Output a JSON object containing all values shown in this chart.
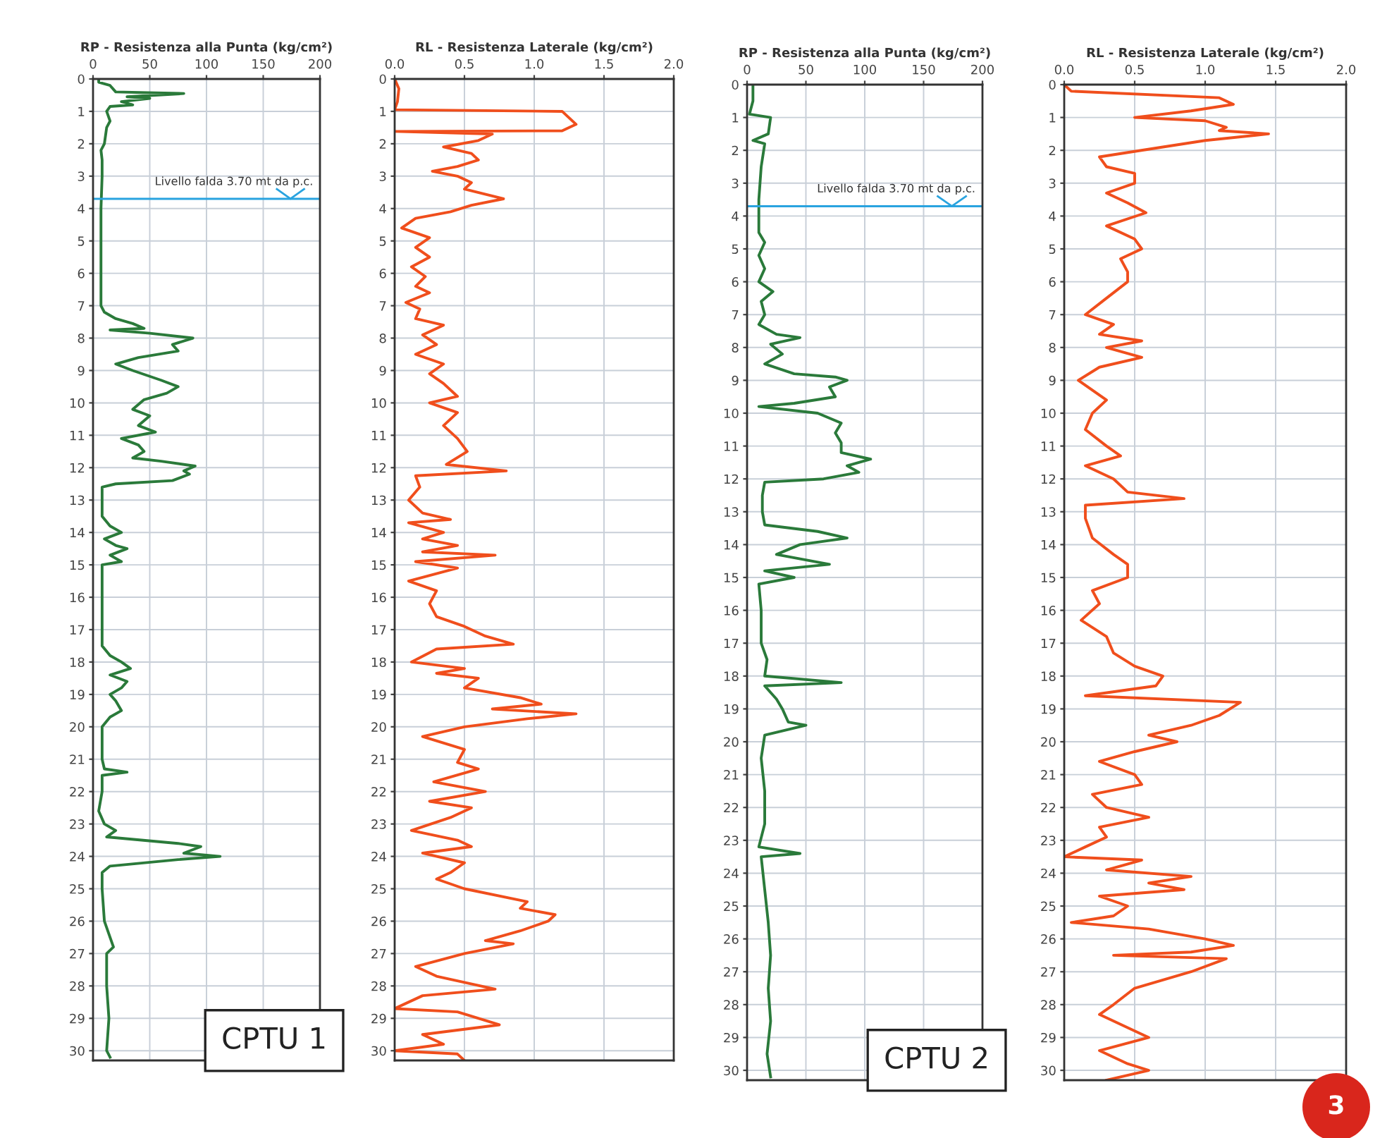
{
  "chart_data": [
    {
      "type": "line",
      "title": "RP - Resistenza alla Punta (kg/cm²)",
      "xlim": [
        0,
        200
      ],
      "xticks": [
        0,
        50,
        100,
        150,
        200
      ],
      "ylim": [
        30.3,
        0
      ],
      "yticks": [
        0,
        1,
        2,
        3,
        4,
        5,
        6,
        7,
        8,
        9,
        10,
        11,
        12,
        13,
        14,
        15,
        16,
        17,
        18,
        19,
        20,
        21,
        22,
        23,
        24,
        25,
        26,
        27,
        28,
        29,
        30
      ],
      "grid": true,
      "line_style": "solid",
      "series": [
        {
          "color": "#2a7a3a",
          "x": [
            5,
            5,
            15,
            20,
            80,
            30,
            50,
            25,
            35,
            15,
            12,
            15,
            12,
            10,
            7,
            8,
            8,
            7,
            7,
            7,
            7,
            10,
            20,
            35,
            45,
            15,
            50,
            88,
            70,
            75,
            40,
            20,
            35,
            60,
            75,
            65,
            45,
            35,
            50,
            40,
            55,
            25,
            40,
            45,
            35,
            60,
            90,
            80,
            85,
            70,
            20,
            8,
            8,
            8,
            15,
            25,
            10,
            20,
            30,
            15,
            25,
            8,
            8,
            8,
            8,
            8,
            15,
            25,
            33,
            15,
            30,
            25,
            15,
            20,
            25,
            15,
            8,
            8,
            10,
            30,
            8,
            8,
            5,
            10,
            20,
            12,
            75,
            95,
            80,
            112,
            75,
            15,
            8,
            8,
            10,
            15,
            18,
            12,
            12,
            14,
            12,
            15
          ],
          "values": [
            0,
            0.1,
            0.2,
            0.4,
            0.45,
            0.55,
            0.6,
            0.7,
            0.8,
            0.85,
            1.0,
            1.3,
            1.5,
            2.0,
            2.2,
            2.5,
            3,
            4,
            5,
            6,
            7,
            7.2,
            7.4,
            7.55,
            7.7,
            7.75,
            7.85,
            8.0,
            8.2,
            8.4,
            8.6,
            8.8,
            9.0,
            9.3,
            9.5,
            9.7,
            9.9,
            10.2,
            10.4,
            10.7,
            10.9,
            11.1,
            11.3,
            11.5,
            11.7,
            11.8,
            11.95,
            12.1,
            12.2,
            12.4,
            12.5,
            12.6,
            13,
            13.5,
            13.8,
            14.0,
            14.2,
            14.4,
            14.5,
            14.7,
            14.9,
            15.0,
            15.5,
            16,
            17,
            17.5,
            17.8,
            18.0,
            18.2,
            18.4,
            18.6,
            18.8,
            19.0,
            19.2,
            19.5,
            19.7,
            20.0,
            21,
            21.3,
            21.4,
            21.5,
            22,
            22.6,
            23,
            23.2,
            23.4,
            23.6,
            23.7,
            23.9,
            24.0,
            24.1,
            24.3,
            24.5,
            25,
            26,
            26.5,
            26.8,
            27,
            28,
            29,
            30,
            30.2
          ]
        }
      ],
      "ref_lines": [
        {
          "axis": "y",
          "value": 3.7,
          "label": "Livello falda 3.70 mt da p.c.",
          "color": "#29a3df"
        }
      ],
      "annotations": [
        "CPTU 1"
      ]
    },
    {
      "type": "line",
      "title": "RL - Resistenza Laterale (kg/cm²)",
      "xlim": [
        0,
        2
      ],
      "xticks": [
        {
          "value": 0,
          "label": "0.0"
        },
        {
          "value": 0.5,
          "label": "0.5"
        },
        {
          "value": 1,
          "label": "1.0"
        },
        {
          "value": 1.5,
          "label": "1.5"
        },
        {
          "value": 2,
          "label": "2.0"
        }
      ],
      "ylim": [
        30.3,
        0
      ],
      "yticks": [
        0,
        1,
        2,
        3,
        4,
        5,
        6,
        7,
        8,
        9,
        10,
        11,
        12,
        13,
        14,
        15,
        16,
        17,
        18,
        19,
        20,
        21,
        22,
        23,
        24,
        25,
        26,
        27,
        28,
        29,
        30
      ],
      "grid": true,
      "line_style": "solid",
      "series": [
        {
          "color": "#f04e1c",
          "x": [
            0.0,
            0.03,
            0.02,
            0.0,
            1.2,
            1.25,
            1.3,
            1.2,
            0.0,
            0.7,
            0.6,
            0.35,
            0.55,
            0.6,
            0.45,
            0.27,
            0.45,
            0.55,
            0.5,
            0.78,
            0.55,
            0.4,
            0.15,
            0.05,
            0.25,
            0.15,
            0.25,
            0.12,
            0.22,
            0.15,
            0.25,
            0.08,
            0.18,
            0.15,
            0.35,
            0.2,
            0.3,
            0.15,
            0.35,
            0.25,
            0.35,
            0.45,
            0.25,
            0.45,
            0.35,
            0.45,
            0.52,
            0.37,
            0.8,
            0.15,
            0.18,
            0.1,
            0.2,
            0.4,
            0.1,
            0.35,
            0.2,
            0.45,
            0.2,
            0.72,
            0.15,
            0.45,
            0.1,
            0.3,
            0.25,
            0.3,
            0.5,
            0.65,
            0.85,
            0.3,
            0.12,
            0.5,
            0.3,
            0.6,
            0.5,
            0.9,
            1.05,
            0.7,
            1.3,
            0.95,
            0.5,
            0.2,
            0.5,
            0.45,
            0.6,
            0.28,
            0.65,
            0.25,
            0.55,
            0.4,
            0.12,
            0.45,
            0.55,
            0.2,
            0.5,
            0.4,
            0.3,
            0.5,
            0.95,
            0.9,
            1.15,
            1.1,
            0.9,
            0.65,
            0.85,
            0.5,
            0.15,
            0.3,
            0.72,
            0.2,
            0.0,
            0.45,
            0.75,
            0.2,
            0.35,
            0.0,
            0.45,
            0.5
          ],
          "values": [
            0,
            0.3,
            0.7,
            0.95,
            1.0,
            1.2,
            1.4,
            1.6,
            1.62,
            1.7,
            1.9,
            2.1,
            2.3,
            2.5,
            2.7,
            2.85,
            3.0,
            3.2,
            3.4,
            3.7,
            3.9,
            4.1,
            4.3,
            4.6,
            4.9,
            5.2,
            5.5,
            5.8,
            6.1,
            6.4,
            6.6,
            6.9,
            7.1,
            7.4,
            7.6,
            7.9,
            8.2,
            8.5,
            8.8,
            9.1,
            9.4,
            9.8,
            10.0,
            10.3,
            10.7,
            11.1,
            11.5,
            11.9,
            12.1,
            12.25,
            12.6,
            13.0,
            13.4,
            13.6,
            13.7,
            14.0,
            14.2,
            14.4,
            14.6,
            14.7,
            14.9,
            15.1,
            15.5,
            15.8,
            16.2,
            16.6,
            16.9,
            17.2,
            17.45,
            17.6,
            18.0,
            18.2,
            18.35,
            18.5,
            18.8,
            19.1,
            19.3,
            19.45,
            19.6,
            19.75,
            20.0,
            20.3,
            20.7,
            21.1,
            21.3,
            21.7,
            22.0,
            22.3,
            22.5,
            22.8,
            23.2,
            23.5,
            23.7,
            23.9,
            24.2,
            24.5,
            24.7,
            25.0,
            25.4,
            25.6,
            25.8,
            26.0,
            26.3,
            26.6,
            26.7,
            27.0,
            27.4,
            27.7,
            28.1,
            28.3,
            28.7,
            28.8,
            29.2,
            29.5,
            29.8,
            30.0,
            30.1,
            30.3
          ]
        }
      ]
    },
    {
      "type": "line",
      "title": "RP - Resistenza alla Punta (kg/cm²)",
      "xlim": [
        0,
        200
      ],
      "xticks": [
        0,
        50,
        100,
        150,
        200
      ],
      "ylim": [
        30.3,
        0
      ],
      "yticks": [
        0,
        1,
        2,
        3,
        4,
        5,
        6,
        7,
        8,
        9,
        10,
        11,
        12,
        13,
        14,
        15,
        16,
        17,
        18,
        19,
        20,
        21,
        22,
        23,
        24,
        25,
        26,
        27,
        28,
        29,
        30
      ],
      "grid": true,
      "line_style": "solid",
      "series": [
        {
          "color": "#2a7a3a",
          "x": [
            5,
            5,
            2,
            20,
            18,
            5,
            15,
            12,
            10,
            10,
            15,
            10,
            15,
            10,
            22,
            12,
            15,
            10,
            25,
            45,
            20,
            30,
            15,
            40,
            75,
            85,
            70,
            75,
            40,
            10,
            60,
            80,
            75,
            80,
            80,
            105,
            85,
            95,
            65,
            15,
            13,
            13,
            15,
            60,
            85,
            45,
            25,
            70,
            15,
            40,
            10,
            12,
            12,
            17,
            15,
            80,
            15,
            25,
            30,
            35,
            50,
            15,
            12,
            15,
            15,
            10,
            45,
            12,
            15,
            18,
            20,
            18,
            20,
            17,
            20
          ],
          "values": [
            0,
            0.5,
            0.9,
            1.0,
            1.5,
            1.7,
            1.8,
            2.5,
            3.5,
            4.5,
            4.8,
            5.2,
            5.6,
            6.0,
            6.3,
            6.6,
            7.0,
            7.3,
            7.6,
            7.7,
            7.9,
            8.2,
            8.5,
            8.8,
            8.9,
            9.0,
            9.2,
            9.5,
            9.7,
            9.8,
            10.0,
            10.3,
            10.6,
            10.9,
            11.2,
            11.4,
            11.6,
            11.8,
            12.0,
            12.1,
            12.5,
            13.0,
            13.4,
            13.6,
            13.8,
            14.0,
            14.3,
            14.6,
            14.8,
            15.0,
            15.2,
            16,
            17,
            17.5,
            18.0,
            18.2,
            18.3,
            18.7,
            19.0,
            19.4,
            19.5,
            19.8,
            20.5,
            21.5,
            22.5,
            23.2,
            23.4,
            23.5,
            24.5,
            25.5,
            26.5,
            27.5,
            28.5,
            29.5,
            30.2
          ]
        }
      ],
      "ref_lines": [
        {
          "axis": "y",
          "value": 3.7,
          "label": "Livello falda 3.70 mt da p.c.",
          "color": "#29a3df"
        }
      ],
      "annotations": [
        "CPTU 2"
      ]
    },
    {
      "type": "line",
      "title": "RL - Resistenza Laterale (kg/cm²)",
      "xlim": [
        0,
        2
      ],
      "xticks": [
        {
          "value": 0,
          "label": "0.0"
        },
        {
          "value": 0.5,
          "label": "0.5"
        },
        {
          "value": 1,
          "label": "1.0"
        },
        {
          "value": 1.5,
          "label": "1.5"
        },
        {
          "value": 2,
          "label": "2.0"
        }
      ],
      "ylim": [
        30.3,
        0
      ],
      "yticks": [
        0,
        1,
        2,
        3,
        4,
        5,
        6,
        7,
        8,
        9,
        10,
        11,
        12,
        13,
        14,
        15,
        16,
        17,
        18,
        19,
        20,
        21,
        22,
        23,
        24,
        25,
        26,
        27,
        28,
        29,
        30
      ],
      "grid": true,
      "line_style": "solid",
      "series": [
        {
          "color": "#f04e1c",
          "x": [
            0.0,
            0.05,
            1.1,
            1.2,
            0.9,
            0.5,
            1.0,
            1.15,
            1.1,
            1.45,
            1.0,
            0.7,
            0.25,
            0.3,
            0.5,
            0.5,
            0.3,
            0.45,
            0.58,
            0.3,
            0.5,
            0.55,
            0.4,
            0.45,
            0.45,
            0.3,
            0.15,
            0.35,
            0.25,
            0.55,
            0.3,
            0.55,
            0.25,
            0.1,
            0.2,
            0.3,
            0.2,
            0.15,
            0.3,
            0.4,
            0.15,
            0.35,
            0.45,
            0.85,
            0.15,
            0.15,
            0.2,
            0.35,
            0.45,
            0.45,
            0.2,
            0.25,
            0.12,
            0.3,
            0.35,
            0.5,
            0.7,
            0.65,
            0.15,
            1.25,
            1.1,
            0.9,
            0.6,
            0.8,
            0.5,
            0.25,
            0.5,
            0.55,
            0.2,
            0.3,
            0.6,
            0.25,
            0.3,
            0.15,
            0.0,
            0.55,
            0.3,
            0.9,
            0.6,
            0.85,
            0.25,
            0.45,
            0.35,
            0.05,
            0.6,
            1.0,
            1.2,
            0.9,
            0.35,
            1.15,
            0.9,
            0.5,
            0.35,
            0.25,
            0.45,
            0.6,
            0.25,
            0.45,
            0.6,
            0.3
          ],
          "values": [
            0,
            0.2,
            0.4,
            0.6,
            0.8,
            1.0,
            1.1,
            1.3,
            1.4,
            1.5,
            1.7,
            1.9,
            2.2,
            2.5,
            2.7,
            3.0,
            3.3,
            3.6,
            3.9,
            4.3,
            4.7,
            5.0,
            5.3,
            5.7,
            6.0,
            6.5,
            7.0,
            7.3,
            7.6,
            7.8,
            8.0,
            8.3,
            8.6,
            9.0,
            9.3,
            9.6,
            10.0,
            10.5,
            11.0,
            11.3,
            11.6,
            12.0,
            12.4,
            12.6,
            12.8,
            13.2,
            13.8,
            14.3,
            14.6,
            15.0,
            15.4,
            15.8,
            16.3,
            16.8,
            17.3,
            17.7,
            18.0,
            18.3,
            18.6,
            18.8,
            19.2,
            19.5,
            19.8,
            20.0,
            20.3,
            20.6,
            21.0,
            21.3,
            21.6,
            22.0,
            22.3,
            22.6,
            22.9,
            23.2,
            23.5,
            23.6,
            23.9,
            24.1,
            24.3,
            24.5,
            24.7,
            25.0,
            25.3,
            25.5,
            25.7,
            26.0,
            26.2,
            26.4,
            26.5,
            26.6,
            27.0,
            27.5,
            28.0,
            28.3,
            28.7,
            29.0,
            29.4,
            29.8,
            30.0,
            30.3
          ]
        }
      ],
      "annotations": [
        "3"
      ]
    }
  ]
}
